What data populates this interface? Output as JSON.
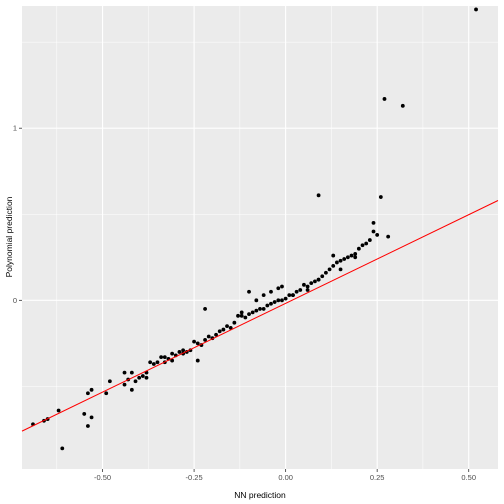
{
  "chart_data": {
    "type": "scatter",
    "xlabel": "NN prediction",
    "ylabel": "Polynomial prediction",
    "xlim": [
      -0.72,
      0.58
    ],
    "ylim": [
      -0.98,
      1.71
    ],
    "x_ticks": [
      -0.5,
      -0.25,
      0.0,
      0.25,
      0.5
    ],
    "x_tick_labels": [
      "-0.50",
      "-0.25",
      "0.00",
      "0.25",
      "0.50"
    ],
    "y_ticks": [
      0,
      1
    ],
    "y_tick_labels": [
      "0",
      "1"
    ],
    "grid": true,
    "panel_background": "#ebebeb",
    "gridline_color": "#ffffff",
    "point_color": "#000000",
    "reference_line": {
      "color": "#ff0000",
      "from": [
        -0.72,
        -0.76
      ],
      "to": [
        0.58,
        0.58
      ]
    },
    "points": [
      [
        -0.69,
        -0.72
      ],
      [
        -0.66,
        -0.7
      ],
      [
        -0.65,
        -0.69
      ],
      [
        -0.62,
        -0.64
      ],
      [
        -0.61,
        -0.86
      ],
      [
        -0.55,
        -0.66
      ],
      [
        -0.54,
        -0.73
      ],
      [
        -0.53,
        -0.68
      ],
      [
        -0.54,
        -0.54
      ],
      [
        -0.53,
        -0.52
      ],
      [
        -0.49,
        -0.54
      ],
      [
        -0.48,
        -0.47
      ],
      [
        -0.44,
        -0.49
      ],
      [
        -0.43,
        -0.46
      ],
      [
        -0.42,
        -0.42
      ],
      [
        -0.42,
        -0.52
      ],
      [
        -0.41,
        -0.47
      ],
      [
        -0.4,
        -0.45
      ],
      [
        -0.39,
        -0.44
      ],
      [
        -0.38,
        -0.42
      ],
      [
        -0.37,
        -0.36
      ],
      [
        -0.36,
        -0.37
      ],
      [
        -0.35,
        -0.36
      ],
      [
        -0.34,
        -0.33
      ],
      [
        -0.33,
        -0.33
      ],
      [
        -0.33,
        -0.36
      ],
      [
        -0.32,
        -0.34
      ],
      [
        -0.31,
        -0.31
      ],
      [
        -0.3,
        -0.32
      ],
      [
        -0.29,
        -0.3
      ],
      [
        -0.28,
        -0.29
      ],
      [
        -0.28,
        -0.31
      ],
      [
        -0.27,
        -0.3
      ],
      [
        -0.26,
        -0.29
      ],
      [
        -0.25,
        -0.24
      ],
      [
        -0.24,
        -0.25
      ],
      [
        -0.23,
        -0.26
      ],
      [
        -0.22,
        -0.23
      ],
      [
        -0.21,
        -0.21
      ],
      [
        -0.2,
        -0.22
      ],
      [
        -0.19,
        -0.2
      ],
      [
        -0.18,
        -0.18
      ],
      [
        -0.17,
        -0.17
      ],
      [
        -0.16,
        -0.15
      ],
      [
        -0.15,
        -0.16
      ],
      [
        -0.14,
        -0.13
      ],
      [
        -0.13,
        -0.09
      ],
      [
        -0.12,
        -0.09
      ],
      [
        -0.11,
        -0.1
      ],
      [
        -0.1,
        -0.08
      ],
      [
        -0.09,
        -0.07
      ],
      [
        -0.08,
        -0.06
      ],
      [
        -0.07,
        -0.05
      ],
      [
        -0.06,
        -0.05
      ],
      [
        -0.05,
        -0.03
      ],
      [
        -0.04,
        -0.02
      ],
      [
        -0.03,
        -0.01
      ],
      [
        -0.02,
        0.0
      ],
      [
        -0.01,
        0.0
      ],
      [
        0.0,
        0.01
      ],
      [
        0.01,
        0.03
      ],
      [
        0.02,
        0.03
      ],
      [
        0.03,
        0.05
      ],
      [
        0.04,
        0.06
      ],
      [
        0.05,
        0.09
      ],
      [
        0.06,
        0.08
      ],
      [
        0.07,
        0.1
      ],
      [
        0.08,
        0.11
      ],
      [
        0.09,
        0.12
      ],
      [
        0.1,
        0.14
      ],
      [
        0.11,
        0.16
      ],
      [
        0.12,
        0.18
      ],
      [
        0.13,
        0.2
      ],
      [
        0.14,
        0.22
      ],
      [
        0.15,
        0.23
      ],
      [
        0.16,
        0.24
      ],
      [
        0.17,
        0.25
      ],
      [
        0.18,
        0.26
      ],
      [
        0.19,
        0.27
      ],
      [
        0.2,
        0.3
      ],
      [
        0.21,
        0.32
      ],
      [
        0.22,
        0.33
      ],
      [
        0.23,
        0.35
      ],
      [
        0.24,
        0.4
      ],
      [
        0.25,
        0.38
      ],
      [
        -0.22,
        -0.05
      ],
      [
        -0.24,
        -0.35
      ],
      [
        -0.38,
        -0.45
      ],
      [
        -0.44,
        -0.42
      ],
      [
        -0.31,
        -0.35
      ],
      [
        -0.12,
        -0.07
      ],
      [
        -0.1,
        0.05
      ],
      [
        -0.04,
        0.05
      ],
      [
        -0.01,
        0.08
      ],
      [
        0.09,
        0.61
      ],
      [
        0.27,
        1.17
      ],
      [
        0.32,
        1.13
      ],
      [
        0.52,
        1.69
      ],
      [
        0.26,
        0.6
      ],
      [
        0.28,
        0.37
      ],
      [
        0.24,
        0.45
      ],
      [
        0.19,
        0.25
      ],
      [
        0.15,
        0.18
      ],
      [
        0.13,
        0.26
      ],
      [
        0.09,
        0.12
      ],
      [
        0.06,
        0.06
      ],
      [
        0.02,
        0.03
      ],
      [
        -0.02,
        0.07
      ],
      [
        -0.06,
        0.03
      ],
      [
        -0.08,
        0.0
      ]
    ]
  }
}
